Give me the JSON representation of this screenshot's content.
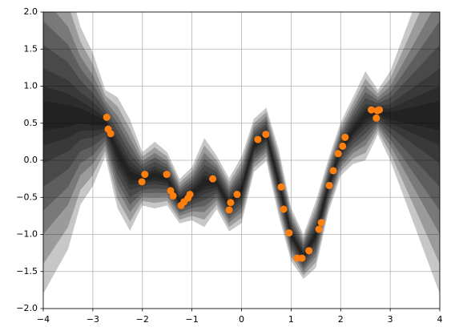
{
  "chart_data": {
    "type": "scatter",
    "xlim": [
      -4,
      4
    ],
    "ylim": [
      -2,
      2
    ],
    "xticks": [
      {
        "value": -4,
        "label": "−4"
      },
      {
        "value": -3,
        "label": "−3"
      },
      {
        "value": -2,
        "label": "−2"
      },
      {
        "value": -1,
        "label": "−1"
      },
      0,
      1,
      2,
      3,
      4
    ],
    "yticks": [
      {
        "value": -2,
        "label": "−2.0"
      },
      {
        "value": -1.5,
        "label": "−1.5"
      },
      {
        "value": -1,
        "label": "−1.0"
      },
      {
        "value": -0.5,
        "label": "−0.5"
      },
      {
        "value": 0,
        "label": "0.0"
      },
      {
        "value": 0.5,
        "label": "0.5"
      },
      {
        "value": 1,
        "label": "1.0"
      },
      {
        "value": 1.5,
        "label": "1.5"
      },
      {
        "value": 2,
        "label": "2.0"
      }
    ],
    "grid": true,
    "band": {
      "color": "#000000",
      "x": [
        -4,
        -3.75,
        -3.5,
        -3.25,
        -3,
        -2.75,
        -2.5,
        -2.25,
        -2,
        -1.75,
        -1.5,
        -1.25,
        -1,
        -0.75,
        -0.5,
        -0.25,
        0,
        0.25,
        0.5,
        0.75,
        1,
        1.25,
        1.5,
        1.75,
        2,
        2.25,
        2.5,
        2.75,
        3,
        3.25,
        3.5,
        3.75,
        4
      ],
      "mean": [
        0.6,
        0.6,
        0.6,
        0.6,
        0.55,
        0.5,
        0.1,
        -0.2,
        -0.25,
        -0.2,
        -0.25,
        -0.55,
        -0.45,
        -0.3,
        -0.3,
        -0.6,
        -0.4,
        0.2,
        0.35,
        -0.3,
        -1.0,
        -1.3,
        -1.0,
        -0.35,
        0.15,
        0.4,
        0.6,
        0.65,
        0.6,
        0.6,
        0.6,
        0.6,
        0.6
      ],
      "std": [
        0.8,
        0.7,
        0.6,
        0.4,
        0.3,
        0.15,
        0.25,
        0.25,
        0.12,
        0.15,
        0.12,
        0.1,
        0.12,
        0.2,
        0.12,
        0.12,
        0.15,
        0.12,
        0.12,
        0.15,
        0.12,
        0.1,
        0.15,
        0.12,
        0.12,
        0.15,
        0.2,
        0.1,
        0.2,
        0.35,
        0.5,
        0.65,
        0.8
      ]
    },
    "points": {
      "color": "#ff7f0e",
      "x": [
        -2.72,
        -2.69,
        -2.64,
        -2.01,
        -1.95,
        -1.51,
        -1.43,
        -1.38,
        -1.22,
        -1.16,
        -1.08,
        -1.04,
        -0.58,
        -0.25,
        -0.22,
        -0.09,
        0.33,
        0.49,
        0.8,
        0.85,
        0.96,
        1.12,
        1.22,
        1.36,
        1.56,
        1.61,
        1.77,
        1.85,
        1.95,
        2.04,
        2.09,
        2.62,
        2.74,
        2.78,
        2.72
      ],
      "y": [
        0.58,
        0.42,
        0.36,
        -0.29,
        -0.19,
        -0.19,
        -0.41,
        -0.48,
        -0.61,
        -0.56,
        -0.51,
        -0.46,
        -0.25,
        -0.67,
        -0.57,
        -0.46,
        0.28,
        0.35,
        -0.36,
        -0.66,
        -0.98,
        -1.32,
        -1.32,
        -1.22,
        -0.93,
        -0.84,
        -0.34,
        -0.14,
        0.09,
        0.19,
        0.31,
        0.68,
        0.67,
        0.68,
        0.57
      ]
    }
  }
}
